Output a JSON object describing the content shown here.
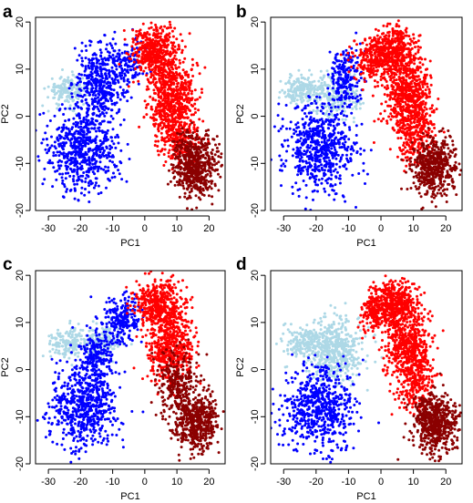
{
  "colors": {
    "lightblue": "#add8e6",
    "blue": "#0000ff",
    "red": "#ff0000",
    "darkred": "#8b0000",
    "axis": "#000000",
    "background": "#ffffff"
  },
  "chart_data": [
    {
      "type": "scatter",
      "panel_label": "a",
      "xlabel": "PC1",
      "ylabel": "PC2",
      "xlim": [
        -34,
        25
      ],
      "ylim": [
        -20,
        21
      ],
      "x_ticks": [
        -30,
        -20,
        -10,
        0,
        10,
        20
      ],
      "y_ticks": [
        -20,
        -10,
        0,
        10,
        20
      ],
      "grid": false,
      "legend": "none",
      "series": [
        {
          "color_key": "lightblue",
          "clusters": [
            {
              "cx": -24,
              "cy": 5.5,
              "sx": 3,
              "sy": 1.6,
              "n": 170
            }
          ]
        },
        {
          "color_key": "blue",
          "clusters": [
            {
              "cx": -14,
              "cy": 7,
              "sx": 4,
              "sy": 4,
              "n": 420
            },
            {
              "cx": -19,
              "cy": -7,
              "sx": 5.5,
              "sy": 4.5,
              "n": 620
            },
            {
              "cx": -5,
              "cy": 12,
              "sx": 3,
              "sy": 2.5,
              "n": 120
            }
          ]
        },
        {
          "color_key": "red",
          "clusters": [
            {
              "cx": 3,
              "cy": 14,
              "sx": 3.5,
              "sy": 2.5,
              "n": 420
            },
            {
              "cx": 8,
              "cy": 4,
              "sx": 3.5,
              "sy": 4.5,
              "n": 620
            },
            {
              "cx": 11,
              "cy": -4,
              "sx": 3,
              "sy": 3.5,
              "n": 220
            }
          ]
        },
        {
          "color_key": "darkred",
          "clusters": [
            {
              "cx": 16,
              "cy": -11,
              "sx": 3.5,
              "sy": 3,
              "n": 520
            },
            {
              "cx": 13,
              "cy": -6,
              "sx": 2,
              "sy": 2,
              "n": 60
            }
          ]
        }
      ]
    },
    {
      "type": "scatter",
      "panel_label": "b",
      "xlabel": "PC1",
      "ylabel": "PC2",
      "xlim": [
        -34,
        25
      ],
      "ylim": [
        -20,
        21
      ],
      "x_ticks": [
        -30,
        -20,
        -10,
        0,
        10,
        20
      ],
      "y_ticks": [
        -20,
        -10,
        0,
        10,
        20
      ],
      "grid": false,
      "legend": "none",
      "series": [
        {
          "color_key": "lightblue",
          "clusters": [
            {
              "cx": -24,
              "cy": 5.5,
              "sx": 3,
              "sy": 1.6,
              "n": 170
            },
            {
              "cx": -14,
              "cy": 4,
              "sx": 3.5,
              "sy": 2.5,
              "n": 220
            }
          ]
        },
        {
          "color_key": "blue",
          "clusters": [
            {
              "cx": -11,
              "cy": 8,
              "sx": 2.5,
              "sy": 3,
              "n": 220
            },
            {
              "cx": -19,
              "cy": -7,
              "sx": 5.5,
              "sy": 4.5,
              "n": 620
            }
          ]
        },
        {
          "color_key": "red",
          "clusters": [
            {
              "cx": -3,
              "cy": 12,
              "sx": 3,
              "sy": 2.5,
              "n": 200
            },
            {
              "cx": 4,
              "cy": 14,
              "sx": 3.5,
              "sy": 2.5,
              "n": 420
            },
            {
              "cx": 8,
              "cy": 4,
              "sx": 3.5,
              "sy": 4.5,
              "n": 620
            },
            {
              "cx": 11,
              "cy": -4,
              "sx": 3,
              "sy": 3.5,
              "n": 220
            }
          ]
        },
        {
          "color_key": "darkred",
          "clusters": [
            {
              "cx": 16.5,
              "cy": -11,
              "sx": 3.3,
              "sy": 3,
              "n": 520
            }
          ]
        }
      ]
    },
    {
      "type": "scatter",
      "panel_label": "c",
      "xlabel": "PC1",
      "ylabel": "PC2",
      "xlim": [
        -34,
        25
      ],
      "ylim": [
        -20,
        21
      ],
      "x_ticks": [
        -30,
        -20,
        -10,
        0,
        10,
        20
      ],
      "y_ticks": [
        -20,
        -10,
        0,
        10,
        20
      ],
      "grid": false,
      "legend": "none",
      "series": [
        {
          "color_key": "lightblue",
          "clusters": [
            {
              "cx": -24,
              "cy": 5.5,
              "sx": 3,
              "sy": 1.6,
              "n": 170
            },
            {
              "cx": -13,
              "cy": 6,
              "sx": 3,
              "sy": 2,
              "n": 140
            }
          ]
        },
        {
          "color_key": "blue",
          "clusters": [
            {
              "cx": -7,
              "cy": 11,
              "sx": 3,
              "sy": 2.5,
              "n": 220
            },
            {
              "cx": -15,
              "cy": 3,
              "sx": 3,
              "sy": 3,
              "n": 220
            },
            {
              "cx": -19,
              "cy": -8,
              "sx": 5.5,
              "sy": 4.5,
              "n": 620
            }
          ]
        },
        {
          "color_key": "red",
          "clusters": [
            {
              "cx": 4,
              "cy": 14,
              "sx": 3.5,
              "sy": 2.5,
              "n": 420
            },
            {
              "cx": 8,
              "cy": 5,
              "sx": 3.5,
              "sy": 4,
              "n": 520
            }
          ]
        },
        {
          "color_key": "darkred",
          "clusters": [
            {
              "cx": 10,
              "cy": -3,
              "sx": 3,
              "sy": 3.5,
              "n": 260
            },
            {
              "cx": 16.5,
              "cy": -11,
              "sx": 3.5,
              "sy": 3,
              "n": 520
            }
          ]
        }
      ]
    },
    {
      "type": "scatter",
      "panel_label": "d",
      "xlabel": "PC1",
      "ylabel": "PC2",
      "xlim": [
        -34,
        25
      ],
      "ylim": [
        -20,
        21
      ],
      "x_ticks": [
        -30,
        -20,
        -10,
        0,
        10,
        20
      ],
      "y_ticks": [
        -20,
        -10,
        0,
        10,
        20
      ],
      "grid": false,
      "legend": "none",
      "series": [
        {
          "color_key": "lightblue",
          "clusters": [
            {
              "cx": -24,
              "cy": 5.5,
              "sx": 3,
              "sy": 1.6,
              "n": 170
            },
            {
              "cx": -14,
              "cy": 4,
              "sx": 4,
              "sy": 3.5,
              "n": 520
            }
          ]
        },
        {
          "color_key": "blue",
          "clusters": [
            {
              "cx": -19,
              "cy": -8,
              "sx": 5.5,
              "sy": 4.5,
              "n": 620
            }
          ]
        },
        {
          "color_key": "red",
          "clusters": [
            {
              "cx": -2,
              "cy": 12,
              "sx": 2.5,
              "sy": 2,
              "n": 160
            },
            {
              "cx": 4,
              "cy": 14,
              "sx": 3.5,
              "sy": 2.5,
              "n": 420
            },
            {
              "cx": 8,
              "cy": 5,
              "sx": 3.5,
              "sy": 4,
              "n": 560
            },
            {
              "cx": 11,
              "cy": -3,
              "sx": 3,
              "sy": 3,
              "n": 200
            }
          ]
        },
        {
          "color_key": "darkred",
          "clusters": [
            {
              "cx": 16.5,
              "cy": -11,
              "sx": 3.5,
              "sy": 3,
              "n": 560
            }
          ]
        }
      ]
    }
  ]
}
